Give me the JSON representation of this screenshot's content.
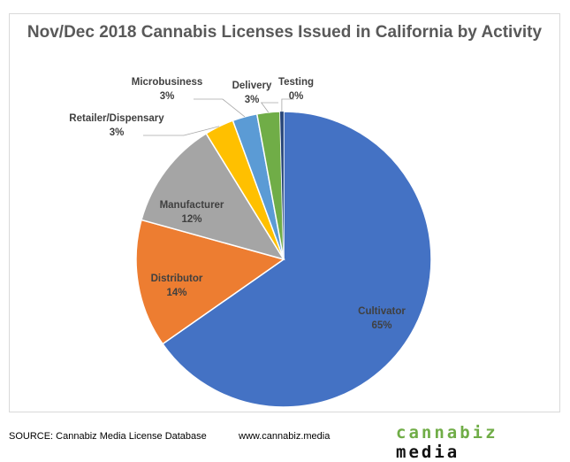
{
  "chart_data": {
    "type": "pie",
    "title": "Nov/Dec 2018 Cannabis Licenses Issued in California by Activity",
    "start": "top",
    "direction": "clockwise",
    "slices": [
      {
        "label": "Cultivator",
        "pct_label": "65%",
        "value": 65.3,
        "color": "#4472c4"
      },
      {
        "label": "Distributor",
        "pct_label": "14%",
        "value": 14.0,
        "color": "#ed7d31"
      },
      {
        "label": "Manufacturer",
        "pct_label": "12%",
        "value": 11.9,
        "color": "#a5a5a5"
      },
      {
        "label": "Retailer/Dispensary",
        "pct_label": "3%",
        "value": 3.2,
        "color": "#ffc000"
      },
      {
        "label": "Microbusiness",
        "pct_label": "3%",
        "value": 2.7,
        "color": "#5b9bd5"
      },
      {
        "label": "Delivery",
        "pct_label": "3%",
        "value": 2.5,
        "color": "#70ad47"
      },
      {
        "label": "Testing",
        "pct_label": "0%",
        "value": 0.4,
        "color": "#264478"
      }
    ]
  },
  "footer": {
    "source": "SOURCE: Cannabiz Media License Database",
    "url": "www.cannabiz.media",
    "logo_part1": "cannabiz",
    "logo_part2": "media"
  }
}
